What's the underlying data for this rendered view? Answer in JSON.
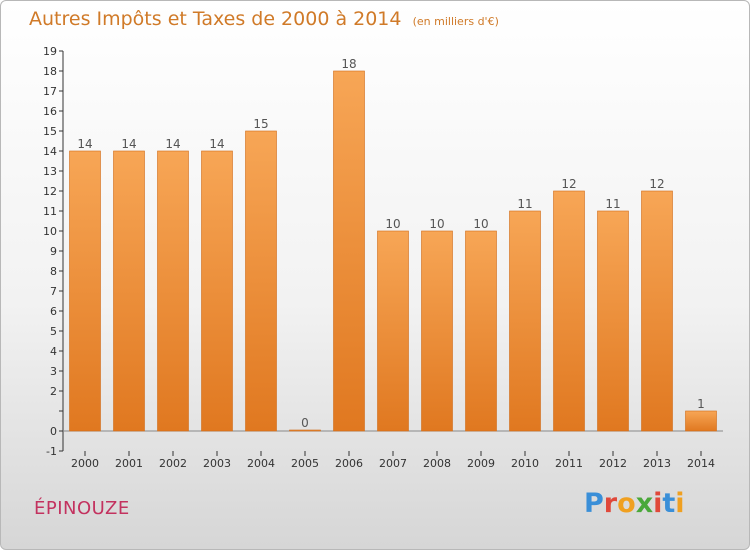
{
  "chart_data": {
    "type": "bar",
    "title": "Autres Impôts et Taxes de 2000 à 2014",
    "unit_note": "(en milliers d'€)",
    "categories": [
      "2000",
      "2001",
      "2002",
      "2003",
      "2004",
      "2005",
      "2006",
      "2007",
      "2008",
      "2009",
      "2010",
      "2011",
      "2012",
      "2013",
      "2014"
    ],
    "values": [
      14,
      14,
      14,
      14,
      15,
      0,
      18,
      10,
      10,
      10,
      11,
      12,
      11,
      12,
      1
    ],
    "data_labels": [
      "14",
      "14",
      "14",
      "14",
      "15",
      "0",
      "18",
      "10",
      "10",
      "10",
      "11",
      "12",
      "11",
      "12",
      "1"
    ],
    "ylim": [
      -1,
      19
    ],
    "yticks": [
      -1,
      0,
      1,
      2,
      3,
      4,
      5,
      6,
      7,
      8,
      9,
      10,
      11,
      12,
      13,
      14,
      15,
      16,
      17,
      18,
      19
    ],
    "ytick_labels": [
      "-1",
      "0",
      "",
      "2",
      "3",
      "4",
      "5",
      "6",
      "7",
      "8",
      "9",
      "10",
      "11",
      "12",
      "13",
      "14",
      "15",
      "16",
      "17",
      "18",
      "19"
    ],
    "grid": false,
    "bar_color": "#f0943a",
    "xlabel": "",
    "ylabel": ""
  },
  "place_name": "ÉPINOUZE",
  "logo": {
    "text": "Proxiti",
    "letter_colors": [
      "#3a8fd8",
      "#e0483a",
      "#f0a020",
      "#4aa83a",
      "#e0483a",
      "#3a8fd8",
      "#f0a020"
    ]
  }
}
